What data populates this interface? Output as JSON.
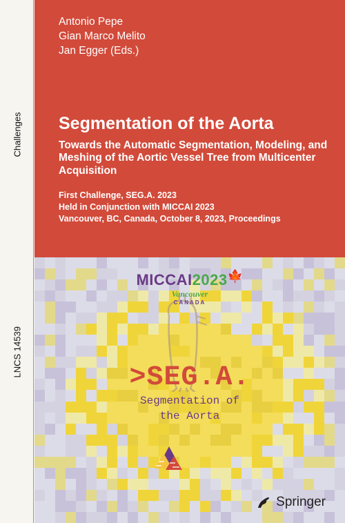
{
  "spine": {
    "series": "LNCS 14539",
    "label": "Challenges"
  },
  "editors": {
    "line1": "Antonio Pepe",
    "line2": "Gian Marco Melito",
    "line3": "Jan Egger",
    "suffix": "(Eds.)"
  },
  "title": {
    "main": "Segmentation of the Aorta",
    "sub": "Towards the Automatic Segmentation, Modeling, and Meshing of the Aortic Vessel Tree from Multicenter Acquisition"
  },
  "conference": {
    "line1": "First Challenge, SEG.A. 2023",
    "line2": "Held in Conjunction with MICCAI 2023",
    "line3": "Vancouver, BC, Canada, October 8, 2023, Proceedings"
  },
  "logo": {
    "conference": "MICCAI",
    "year": "2023",
    "city": "Vancouver",
    "country": "CANADA",
    "conf_color": "#6a3a86",
    "year_color": "#4aa84a"
  },
  "sega": {
    "main": ">SEG.A.",
    "sub1": "Segmentation of",
    "sub2": "the Aorta",
    "main_color": "#d24a3a",
    "sub_color": "#6a3a86"
  },
  "publisher": {
    "name": "Springer"
  },
  "colors": {
    "brand_red": "#d24a3a",
    "page_bg": "#f7f5f0",
    "pixel_palette": [
      "#f4dd5a",
      "#f0d53a",
      "#e8cf42",
      "#dcdce8",
      "#d4d2e0",
      "#c7c2d9",
      "#efe9a8",
      "#e3d98a"
    ],
    "aorta_line": "#a89282"
  }
}
